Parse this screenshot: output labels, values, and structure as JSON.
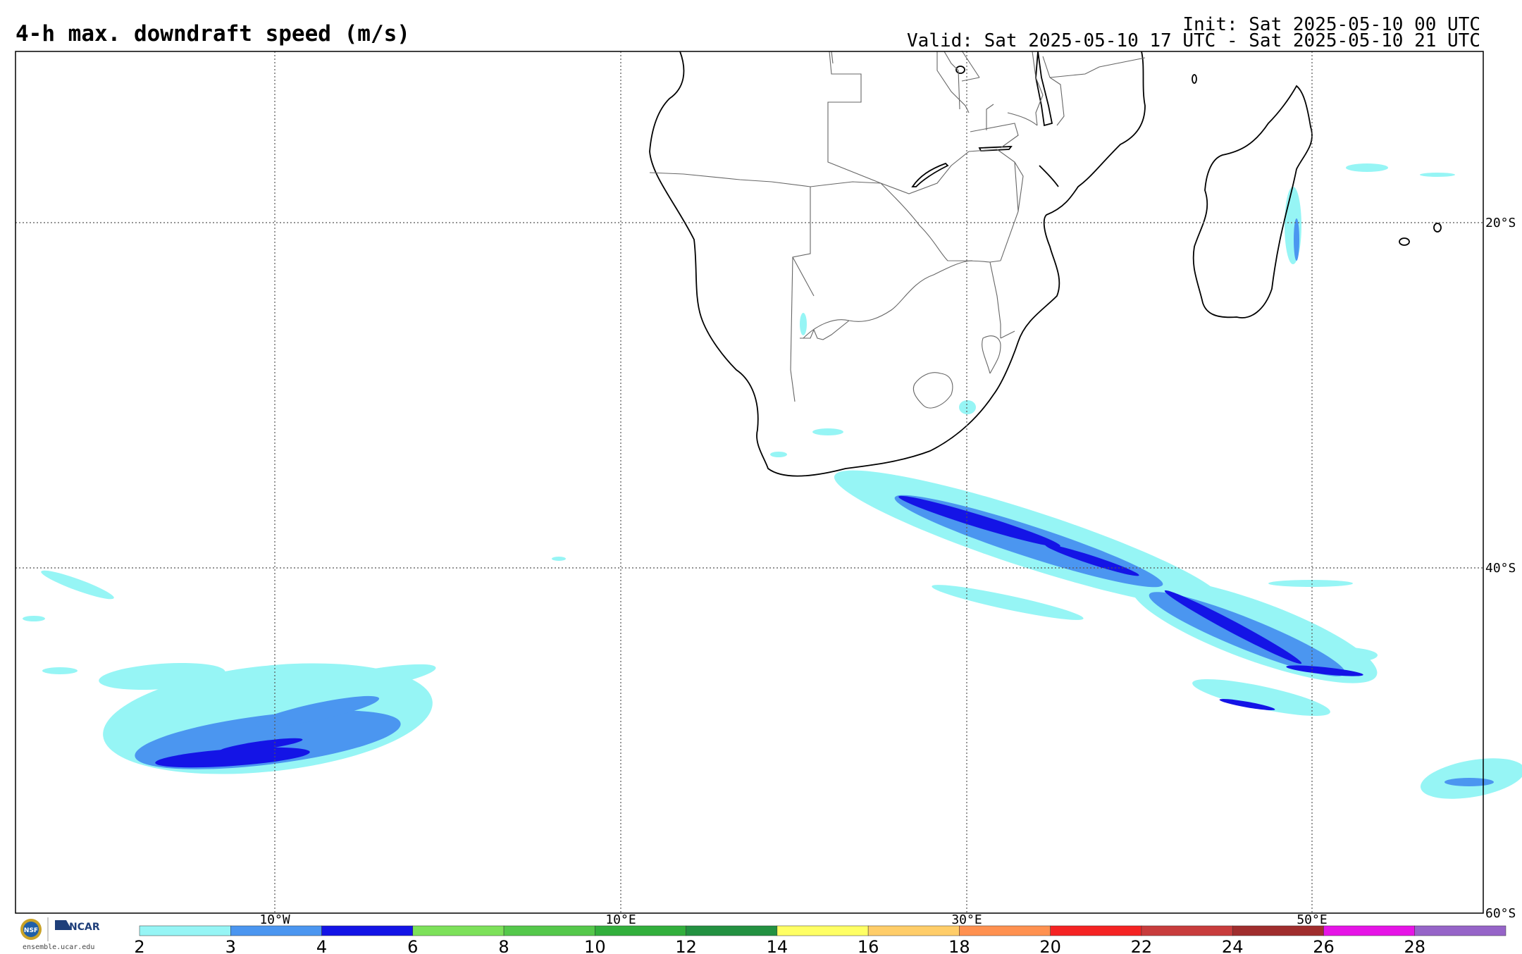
{
  "header": {
    "title": "4-h max. downdraft speed (m/s)",
    "init": "Init: Sat 2025-05-10 00 UTC",
    "valid": "Valid: Sat 2025-05-10 17 UTC - Sat 2025-05-10 21 UTC"
  },
  "map": {
    "lat_labels": [
      "20°S",
      "40°S",
      "60°S"
    ],
    "lon_labels": [
      "10°W",
      "10°E",
      "30°E",
      "50°E"
    ],
    "lat_values": [
      -20,
      -40,
      -60
    ],
    "lon_values": [
      -10,
      10,
      30,
      50
    ]
  },
  "colorbar": {
    "labels": [
      "2",
      "3",
      "4",
      "6",
      "8",
      "10",
      "12",
      "14",
      "16",
      "18",
      "20",
      "22",
      "24",
      "26",
      "28"
    ],
    "colors": [
      "#96f5f5",
      "#4b96f0",
      "#1414e6",
      "#7de15a",
      "#55c84b",
      "#32af3c",
      "#239141",
      "#ffff64",
      "#ffcd69",
      "#ff9150",
      "#f52323",
      "#c83c3c",
      "#a02d2d",
      "#e614e6",
      "#9664c8"
    ]
  },
  "footer": {
    "logo_nsf": "NSF",
    "logo_ncar": "NCAR",
    "site": "ensemble.ucar.edu"
  }
}
